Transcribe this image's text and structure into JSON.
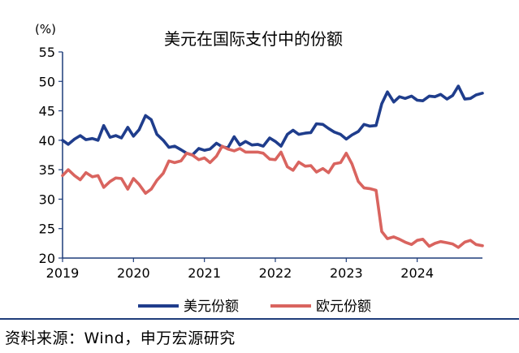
{
  "chart_data": {
    "type": "line",
    "title": "美元在国际支付中的份额",
    "ylabel": "(%)",
    "xlabel": "",
    "ylim": [
      20,
      55
    ],
    "yticks": [
      20,
      25,
      30,
      35,
      40,
      45,
      50,
      55
    ],
    "xlim": [
      2019,
      2024.92
    ],
    "xticks": [
      2019,
      2020,
      2021,
      2022,
      2023,
      2024
    ],
    "grid": false,
    "legend_position": "bottom",
    "colors": {
      "usd": "#1f3d8c",
      "eur": "#d9645f",
      "axis": "#1f3d7a"
    },
    "series": [
      {
        "name": "美元份额",
        "x": [
          2019.0,
          2019.08,
          2019.17,
          2019.25,
          2019.33,
          2019.42,
          2019.5,
          2019.58,
          2019.67,
          2019.75,
          2019.83,
          2019.92,
          2020.0,
          2020.08,
          2020.17,
          2020.25,
          2020.33,
          2020.42,
          2020.5,
          2020.58,
          2020.67,
          2020.75,
          2020.83,
          2020.92,
          2021.0,
          2021.08,
          2021.17,
          2021.25,
          2021.33,
          2021.42,
          2021.5,
          2021.58,
          2021.67,
          2021.75,
          2021.83,
          2021.92,
          2022.0,
          2022.08,
          2022.17,
          2022.25,
          2022.33,
          2022.42,
          2022.5,
          2022.58,
          2022.67,
          2022.75,
          2022.83,
          2022.92,
          2023.0,
          2023.08,
          2023.17,
          2023.25,
          2023.33,
          2023.42,
          2023.5,
          2023.58,
          2023.67,
          2023.75,
          2023.83,
          2023.92,
          2024.0,
          2024.08,
          2024.17,
          2024.25,
          2024.33,
          2024.42,
          2024.5,
          2024.58,
          2024.67,
          2024.75,
          2024.83,
          2024.92
        ],
        "values": [
          40.0,
          39.3,
          40.2,
          40.8,
          40.1,
          40.3,
          40.0,
          42.5,
          40.5,
          40.8,
          40.4,
          42.2,
          40.7,
          41.8,
          44.2,
          43.5,
          41.0,
          40.0,
          38.8,
          39.0,
          38.4,
          37.8,
          37.5,
          38.6,
          38.3,
          38.5,
          39.5,
          38.9,
          38.7,
          40.6,
          39.2,
          39.8,
          39.2,
          39.3,
          39.0,
          40.4,
          39.8,
          39.0,
          41.0,
          41.7,
          41.0,
          41.2,
          41.3,
          42.8,
          42.7,
          42.0,
          41.4,
          41.0,
          40.2,
          40.9,
          41.5,
          42.7,
          42.4,
          42.5,
          46.2,
          48.2,
          46.5,
          47.4,
          47.1,
          47.5,
          46.8,
          46.7,
          47.5,
          47.4,
          47.8,
          47.0,
          47.6,
          49.2,
          47.0,
          47.1,
          47.7,
          48.0
        ]
      },
      {
        "name": "欧元份额",
        "x": [
          2019.0,
          2019.08,
          2019.17,
          2019.25,
          2019.33,
          2019.42,
          2019.5,
          2019.58,
          2019.67,
          2019.75,
          2019.83,
          2019.92,
          2020.0,
          2020.08,
          2020.17,
          2020.25,
          2020.33,
          2020.42,
          2020.5,
          2020.58,
          2020.67,
          2020.75,
          2020.83,
          2020.92,
          2021.0,
          2021.08,
          2021.17,
          2021.25,
          2021.33,
          2021.42,
          2021.5,
          2021.58,
          2021.67,
          2021.75,
          2021.83,
          2021.92,
          2022.0,
          2022.08,
          2022.17,
          2022.25,
          2022.33,
          2022.42,
          2022.5,
          2022.58,
          2022.67,
          2022.75,
          2022.83,
          2022.92,
          2023.0,
          2023.08,
          2023.17,
          2023.25,
          2023.33,
          2023.42,
          2023.5,
          2023.58,
          2023.67,
          2023.75,
          2023.83,
          2023.92,
          2024.0,
          2024.08,
          2024.17,
          2024.25,
          2024.33,
          2024.42,
          2024.5,
          2024.58,
          2024.67,
          2024.75,
          2024.83,
          2024.92
        ],
        "values": [
          34.0,
          35.0,
          34.0,
          33.3,
          34.5,
          33.8,
          34.0,
          32.0,
          33.0,
          33.6,
          33.5,
          31.7,
          33.5,
          32.5,
          31.0,
          31.7,
          33.2,
          34.4,
          36.5,
          36.2,
          36.5,
          37.8,
          37.5,
          36.7,
          37.0,
          36.2,
          37.3,
          39.0,
          38.5,
          38.2,
          38.6,
          38.0,
          38.0,
          38.0,
          37.8,
          36.8,
          36.7,
          38.0,
          35.5,
          34.9,
          36.3,
          35.6,
          35.7,
          34.6,
          35.2,
          34.5,
          36.0,
          36.2,
          37.8,
          36.0,
          33.0,
          31.9,
          31.8,
          31.5,
          24.5,
          23.3,
          23.6,
          23.2,
          22.7,
          22.3,
          23.0,
          23.2,
          22.0,
          22.5,
          22.8,
          22.6,
          22.4,
          21.8,
          22.7,
          23.0,
          22.3,
          22.1
        ]
      }
    ]
  },
  "source_text": "资料来源：Wind，申万宏源研究"
}
